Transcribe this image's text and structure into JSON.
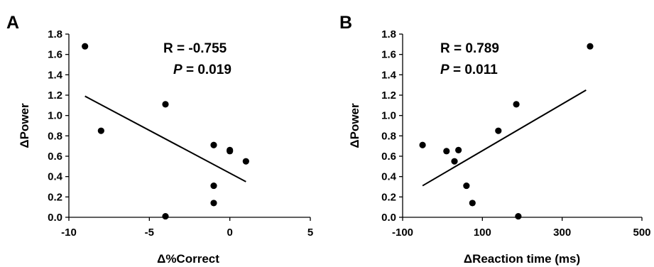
{
  "chart_data": [
    {
      "panel": "A",
      "type": "scatter",
      "xlabel": "Δ%Correct",
      "ylabel": "ΔPower",
      "xlim": [
        -10,
        5
      ],
      "ylim": [
        0,
        1.8
      ],
      "xticks": [
        -10,
        -5,
        0,
        5
      ],
      "yticks": [
        0.0,
        0.2,
        0.4,
        0.6,
        0.8,
        1.0,
        1.2,
        1.4,
        1.6,
        1.8
      ],
      "xtick_labels": [
        "-10",
        "-5",
        "0",
        "5"
      ],
      "ytick_labels": [
        "0.0",
        "0.2",
        "0.4",
        "0.6",
        "0.8",
        "1.0",
        "1.2",
        "1.4",
        "1.6",
        "1.8"
      ],
      "points": [
        {
          "x": -9,
          "y": 1.68
        },
        {
          "x": -8,
          "y": 0.85
        },
        {
          "x": -4,
          "y": 1.11
        },
        {
          "x": -4,
          "y": 0.01
        },
        {
          "x": -1,
          "y": 0.71
        },
        {
          "x": -1,
          "y": 0.31
        },
        {
          "x": -1,
          "y": 0.14
        },
        {
          "x": 0,
          "y": 0.66
        },
        {
          "x": 0,
          "y": 0.65
        },
        {
          "x": 1,
          "y": 0.55
        }
      ],
      "trendline": {
        "x": [
          -9,
          1
        ],
        "y": [
          1.19,
          0.35
        ]
      },
      "annotation": {
        "r_text": "R = -0.755",
        "p_label": "P",
        "p_value": " = 0.019"
      },
      "grid": false
    },
    {
      "panel": "B",
      "type": "scatter",
      "xlabel": "ΔReaction time (ms)",
      "ylabel": "ΔPower",
      "xlim": [
        -100,
        500
      ],
      "ylim": [
        0,
        1.8
      ],
      "xticks": [
        -100,
        100,
        300,
        500
      ],
      "yticks": [
        0.0,
        0.2,
        0.4,
        0.6,
        0.8,
        1.0,
        1.2,
        1.4,
        1.6,
        1.8
      ],
      "xtick_labels": [
        "-100",
        "100",
        "300",
        "500"
      ],
      "ytick_labels": [
        "0.0",
        "0.2",
        "0.4",
        "0.6",
        "0.8",
        "1.0",
        "1.2",
        "1.4",
        "1.6",
        "1.8"
      ],
      "points": [
        {
          "x": -50,
          "y": 0.71
        },
        {
          "x": 10,
          "y": 0.65
        },
        {
          "x": 30,
          "y": 0.55
        },
        {
          "x": 40,
          "y": 0.66
        },
        {
          "x": 60,
          "y": 0.31
        },
        {
          "x": 75,
          "y": 0.14
        },
        {
          "x": 140,
          "y": 0.85
        },
        {
          "x": 185,
          "y": 1.11
        },
        {
          "x": 190,
          "y": 0.01
        },
        {
          "x": 370,
          "y": 1.68
        }
      ],
      "trendline": {
        "x": [
          -50,
          360
        ],
        "y": [
          0.31,
          1.25
        ]
      },
      "annotation": {
        "r_text": "R = 0.789",
        "p_label": "P",
        "p_value": " = 0.011"
      },
      "grid": false
    }
  ]
}
